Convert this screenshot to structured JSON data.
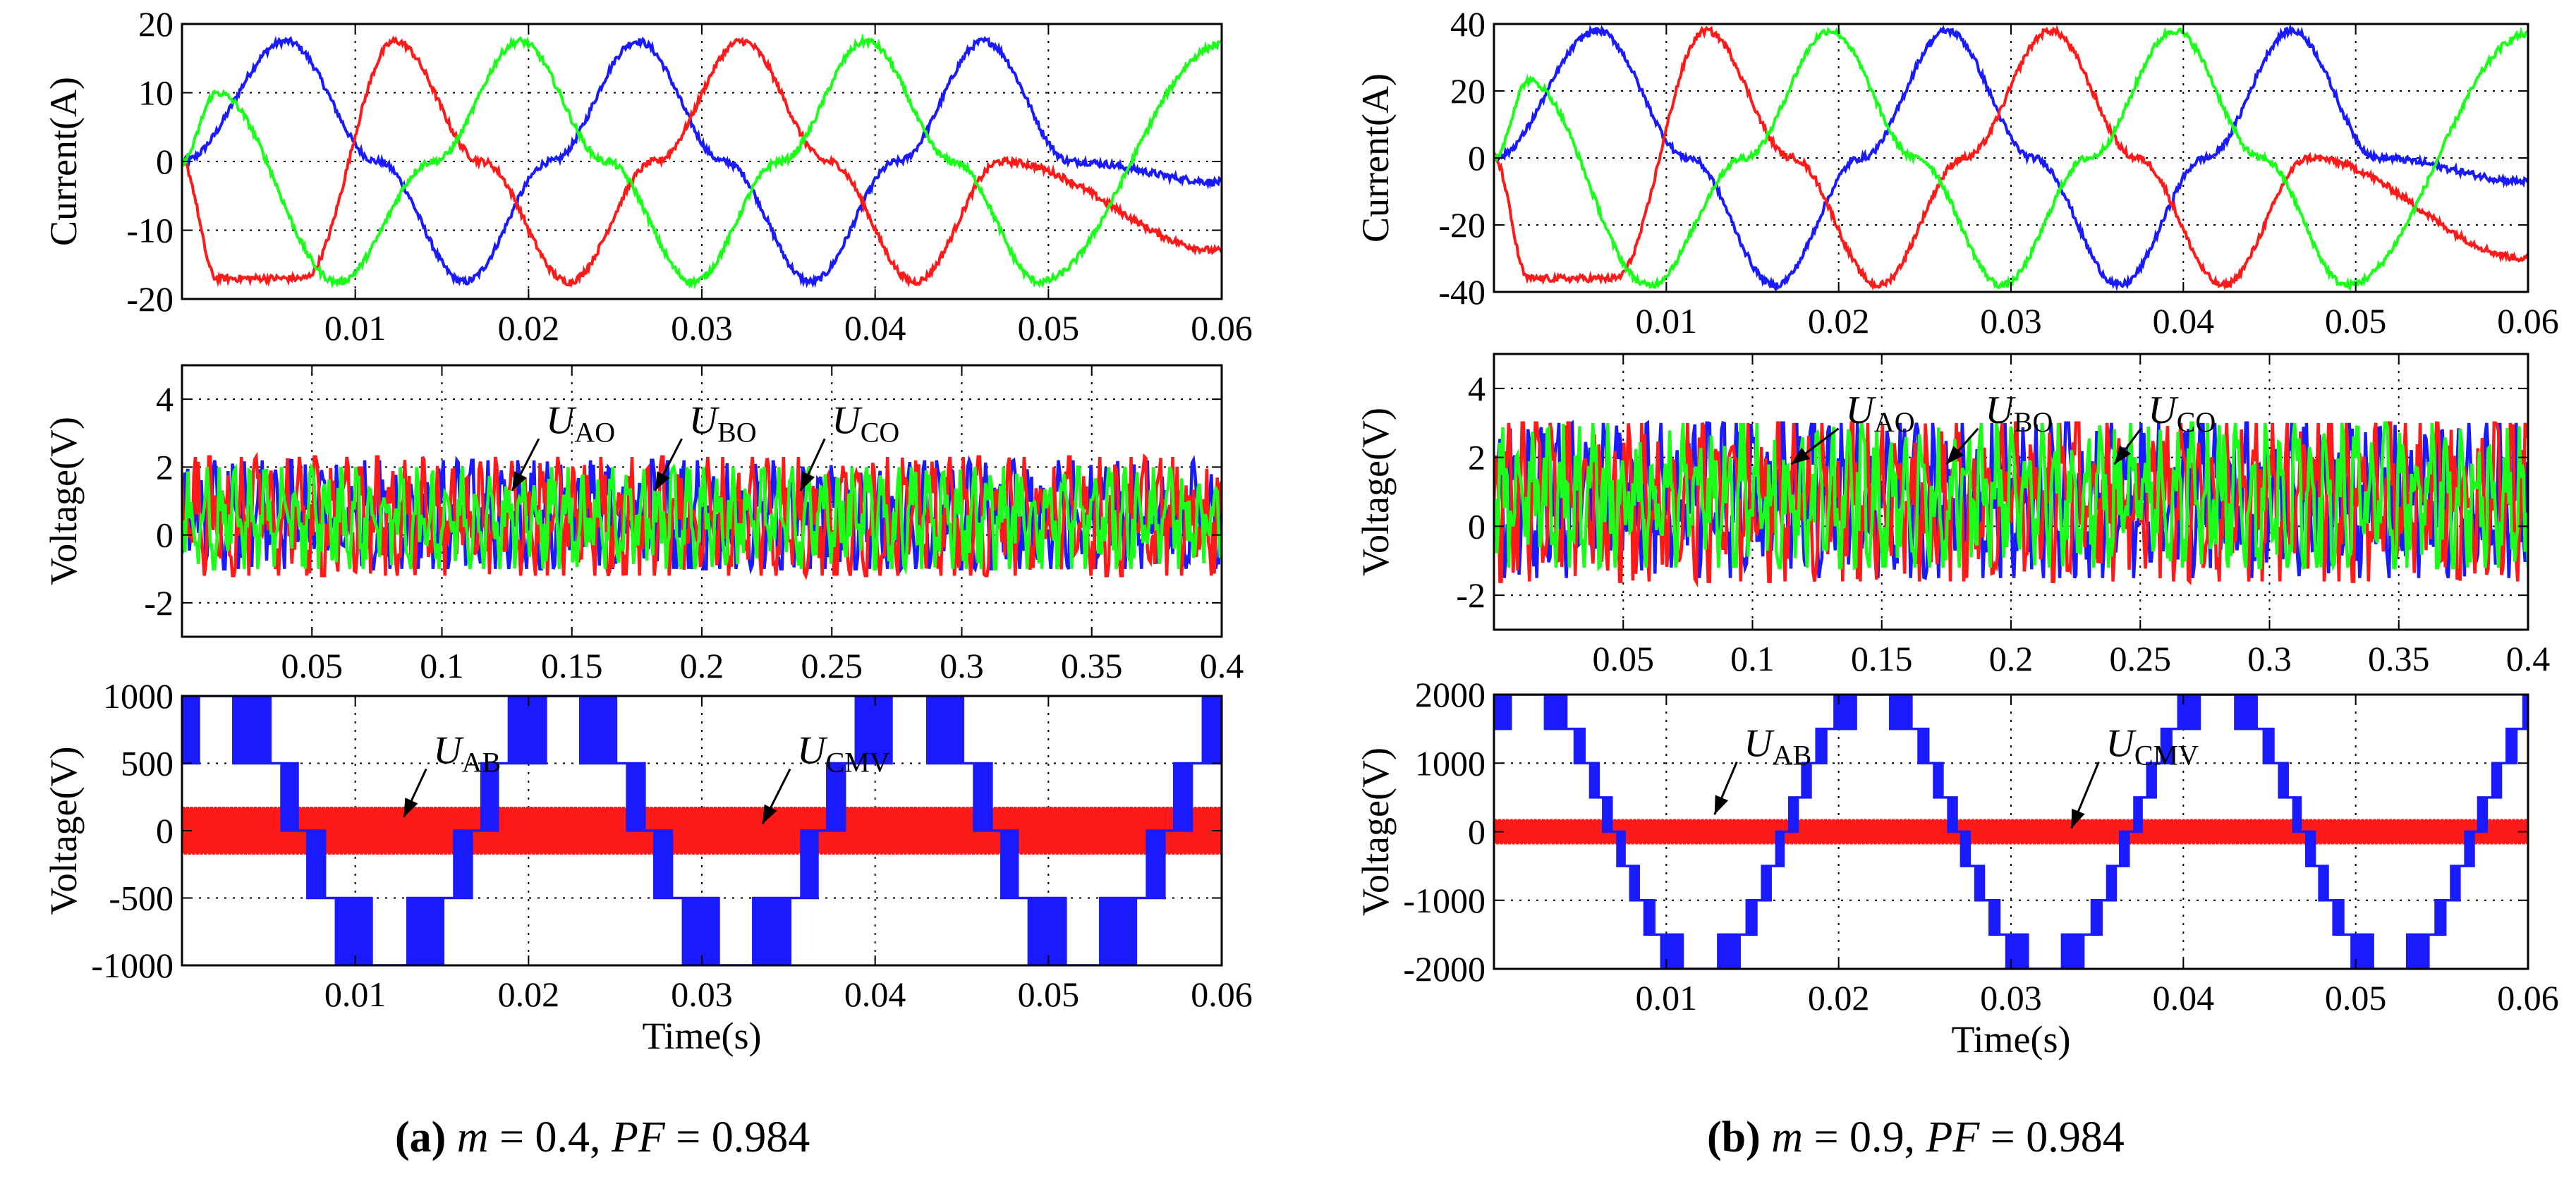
{
  "colors": {
    "phase_a": "#1a1aff",
    "phase_b": "#ff1a1a",
    "phase_c": "#1aff1a",
    "uab": "#1a1aff",
    "ucmv": "#ff1a1a"
  },
  "captions": [
    {
      "letter": "(a)",
      "m_sym": "m",
      "m_val": " = 0.4, ",
      "pf_sym": "PF",
      "pf_val": " = 0.984"
    },
    {
      "letter": "(b)",
      "m_sym": "m",
      "m_val": " = 0.9, ",
      "pf_sym": "PF",
      "pf_val": " = 0.984"
    }
  ],
  "chart_data": [
    {
      "id": "a-current",
      "type": "line",
      "grid": true,
      "ylabel": "Current(A)",
      "xlabel": "",
      "xlim": [
        0,
        0.06
      ],
      "ylim": [
        -20,
        20
      ],
      "xticks": [
        0.01,
        0.02,
        0.03,
        0.04,
        0.05,
        0.06
      ],
      "xticklabels": [
        "0.01",
        "0.02",
        "0.03",
        "0.04",
        "0.05",
        "0.06"
      ],
      "yticks": [
        -20,
        -10,
        0,
        10,
        20
      ],
      "yticklabels": [
        "-20",
        "-10",
        "0",
        "10",
        "20"
      ],
      "series": [
        {
          "x": [
            0,
            0.006,
            0.0113,
            0.0163,
            0.0213,
            0.0263,
            0.0313,
            0.0363,
            0.0413,
            0.0463,
            0.0513,
            0.06
          ],
          "values": [
            0,
            17.5,
            0,
            -17.5,
            0,
            17.5,
            0,
            -17.5,
            0,
            17.5,
            0,
            -3
          ]
        },
        {
          "x": [
            0,
            0.002,
            0.007,
            0.0123,
            0.0173,
            0.0223,
            0.0273,
            0.0323,
            0.0373,
            0.0423,
            0.0473,
            0.06
          ],
          "values": [
            0,
            -17,
            -17,
            17.5,
            0,
            -17.5,
            0,
            17.5,
            0,
            -17.5,
            0,
            -13
          ]
        },
        {
          "x": [
            0,
            0.002,
            0.009,
            0.0145,
            0.0195,
            0.0245,
            0.0295,
            0.0345,
            0.0395,
            0.0445,
            0.0495,
            0.06
          ],
          "values": [
            0,
            10,
            -17.5,
            0,
            17.5,
            0,
            -17.5,
            0,
            17.5,
            0,
            -17.5,
            17
          ]
        }
      ]
    },
    {
      "id": "a-phase-voltage",
      "type": "line",
      "grid": true,
      "ylabel": "Voltage(V)",
      "xlabel": "",
      "xlim": [
        0,
        0.4
      ],
      "ylim": [
        -3,
        5
      ],
      "xticks": [
        0.05,
        0.1,
        0.15,
        0.2,
        0.25,
        0.3,
        0.35,
        0.4
      ],
      "xticklabels": [
        "0.05",
        "0.1",
        "0.15",
        "0.2",
        "0.25",
        "0.3",
        "0.35",
        "0.4"
      ],
      "yticks": [
        -2,
        0,
        2,
        4
      ],
      "yticklabels": [
        "-2",
        "0",
        "2",
        "4"
      ],
      "series": [
        {
          "name": "U_AO",
          "values": [
            0.5,
            2.2,
            -1.0
          ]
        },
        {
          "name": "U_BO",
          "values": [
            0.5,
            2.3,
            -1.2
          ]
        },
        {
          "name": "U_CO",
          "values": [
            0.5,
            2.0,
            -1.0
          ]
        }
      ],
      "annotations": [
        {
          "main": "U",
          "sub": "AO",
          "x": 0.14,
          "y": 3.0,
          "point": [
            0.127,
            1.3
          ]
        },
        {
          "main": "U",
          "sub": "BO",
          "x": 0.195,
          "y": 3.0,
          "point": [
            0.182,
            1.3
          ]
        },
        {
          "main": "U",
          "sub": "CO",
          "x": 0.25,
          "y": 3.0,
          "point": [
            0.238,
            1.3
          ]
        }
      ]
    },
    {
      "id": "a-line-voltage",
      "type": "line",
      "grid": true,
      "ylabel": "Voltage(V)",
      "xlabel": "Time(s)",
      "xlim": [
        0,
        0.06
      ],
      "ylim": [
        -1000,
        1000
      ],
      "xticks": [
        0.01,
        0.02,
        0.03,
        0.04,
        0.05,
        0.06
      ],
      "xticklabels": [
        "0.01",
        "0.02",
        "0.03",
        "0.04",
        "0.05",
        "0.06"
      ],
      "yticks": [
        -1000,
        -500,
        0,
        500,
        1000
      ],
      "yticklabels": [
        "-1000",
        "-500",
        "0",
        "500",
        "1000"
      ],
      "series": [
        {
          "name": "U_AB",
          "amplitude": 1000,
          "levels": [
            500,
            1000
          ]
        },
        {
          "name": "U_CMV",
          "values": [
            170,
            -170
          ]
        }
      ],
      "annotations": [
        {
          "main": "U",
          "sub": "AB",
          "x": 0.0145,
          "y": 500,
          "point": [
            0.0128,
            100
          ]
        },
        {
          "main": "U",
          "sub": "CMV",
          "x": 0.0355,
          "y": 500,
          "point": [
            0.0335,
            50
          ]
        }
      ]
    },
    {
      "id": "b-current",
      "type": "line",
      "grid": true,
      "ylabel": "Current(A)",
      "xlabel": "",
      "xlim": [
        0,
        0.06
      ],
      "ylim": [
        -40,
        40
      ],
      "xticks": [
        0.01,
        0.02,
        0.03,
        0.04,
        0.05,
        0.06
      ],
      "xticklabels": [
        "0.01",
        "0.02",
        "0.03",
        "0.04",
        "0.05",
        "0.06"
      ],
      "yticks": [
        -40,
        -20,
        0,
        20,
        40
      ],
      "yticklabels": [
        "-40",
        "-20",
        "0",
        "20",
        "40"
      ],
      "series": [
        {
          "x": [
            0,
            0.006,
            0.0113,
            0.0163,
            0.0213,
            0.0263,
            0.0313,
            0.0363,
            0.0413,
            0.0463,
            0.0513,
            0.06
          ],
          "values": [
            0,
            38,
            0,
            -38,
            0,
            38,
            0,
            -38,
            0,
            38,
            0,
            -7
          ]
        },
        {
          "x": [
            0,
            0.002,
            0.007,
            0.0123,
            0.0173,
            0.0223,
            0.0273,
            0.0323,
            0.0373,
            0.0423,
            0.0473,
            0.06
          ],
          "values": [
            0,
            -36,
            -36,
            38,
            0,
            -38,
            0,
            38,
            0,
            -38,
            0,
            -30
          ]
        },
        {
          "x": [
            0,
            0.002,
            0.009,
            0.0145,
            0.0195,
            0.0245,
            0.0295,
            0.0345,
            0.0395,
            0.0445,
            0.0495,
            0.06
          ],
          "values": [
            0,
            23,
            -38,
            0,
            38,
            0,
            -38,
            0,
            38,
            0,
            -38,
            37
          ]
        }
      ]
    },
    {
      "id": "b-phase-voltage",
      "type": "line",
      "grid": true,
      "ylabel": "Voltage(V)",
      "xlabel": "",
      "xlim": [
        0,
        0.4
      ],
      "ylim": [
        -3,
        5
      ],
      "xticks": [
        0.05,
        0.1,
        0.15,
        0.2,
        0.25,
        0.3,
        0.35,
        0.4
      ],
      "xticklabels": [
        "0.05",
        "0.1",
        "0.15",
        "0.2",
        "0.25",
        "0.3",
        "0.35",
        "0.4"
      ],
      "yticks": [
        -2,
        0,
        2,
        4
      ],
      "yticklabels": [
        "-2",
        "0",
        "2",
        "4"
      ],
      "series": [
        {
          "name": "U_AO",
          "values": [
            0.8,
            3.0,
            -1.5
          ]
        },
        {
          "name": "U_BO",
          "values": [
            0.8,
            3.0,
            -1.6
          ]
        },
        {
          "name": "U_CO",
          "values": [
            0.8,
            3.0,
            -1.2
          ]
        }
      ],
      "annotations": [
        {
          "main": "U",
          "sub": "AO",
          "x": 0.136,
          "y": 3.0,
          "point": [
            0.115,
            1.8
          ]
        },
        {
          "main": "U",
          "sub": "BO",
          "x": 0.19,
          "y": 3.0,
          "point": [
            0.175,
            1.8
          ]
        },
        {
          "main": "U",
          "sub": "CO",
          "x": 0.253,
          "y": 3.0,
          "point": [
            0.24,
            1.8
          ]
        }
      ]
    },
    {
      "id": "b-line-voltage",
      "type": "line",
      "grid": true,
      "ylabel": "Voltage(V)",
      "xlabel": "Time(s)",
      "xlim": [
        0,
        0.06
      ],
      "ylim": [
        -2000,
        2000
      ],
      "xticks": [
        0.01,
        0.02,
        0.03,
        0.04,
        0.05,
        0.06
      ],
      "xticklabels": [
        "0.01",
        "0.02",
        "0.03",
        "0.04",
        "0.05",
        "0.06"
      ],
      "yticks": [
        -2000,
        -1000,
        0,
        1000,
        2000
      ],
      "yticklabels": [
        "-2000",
        "-1000",
        "0",
        "1000",
        "2000"
      ],
      "series": [
        {
          "name": "U_AB",
          "amplitude": 2000,
          "levels": [
            500,
            1000,
            1500,
            2000
          ]
        },
        {
          "name": "U_CMV",
          "values": [
            170,
            -170
          ]
        }
      ],
      "annotations": [
        {
          "main": "U",
          "sub": "AB",
          "x": 0.0145,
          "y": 1100,
          "point": [
            0.0128,
            250
          ]
        },
        {
          "main": "U",
          "sub": "CMV",
          "x": 0.0355,
          "y": 1100,
          "point": [
            0.0335,
            50
          ]
        }
      ]
    }
  ]
}
